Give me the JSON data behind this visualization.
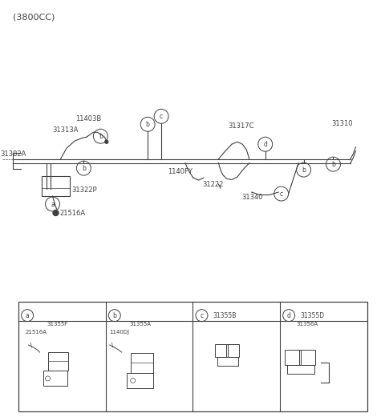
{
  "title": "(3800CC)",
  "bg_color": "#ffffff",
  "line_color": "#404040",
  "fig_width": 4.8,
  "fig_height": 5.21,
  "dpi": 100,
  "xlim": [
    0,
    9.6
  ],
  "ylim": [
    0,
    10.42
  ]
}
